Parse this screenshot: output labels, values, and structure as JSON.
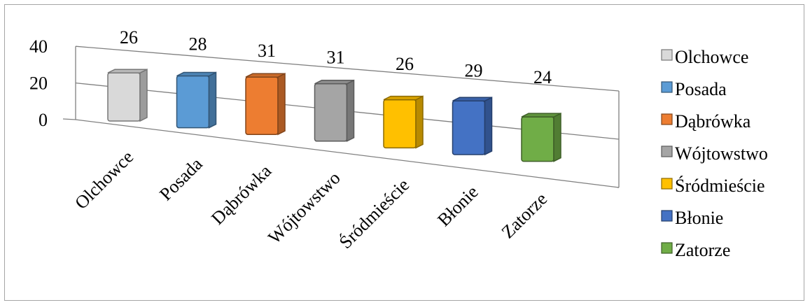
{
  "chart_data": {
    "type": "bar",
    "title": "",
    "xlabel": "",
    "ylabel": "",
    "ylim": [
      0,
      40
    ],
    "yticks": [
      0,
      20,
      40
    ],
    "grid": true,
    "legend_position": "right",
    "categories": [
      "Olchowce",
      "Posada",
      "Dąbrówka",
      "Wójtowstwo",
      "Śródmieście",
      "Błonie",
      "Zatorze"
    ],
    "values": [
      26,
      28,
      31,
      31,
      26,
      29,
      24
    ],
    "colors": [
      "#d9d9d9",
      "#5b9bd5",
      "#ed7d31",
      "#a5a5a5",
      "#ffc000",
      "#4472c4",
      "#70ad47"
    ]
  }
}
